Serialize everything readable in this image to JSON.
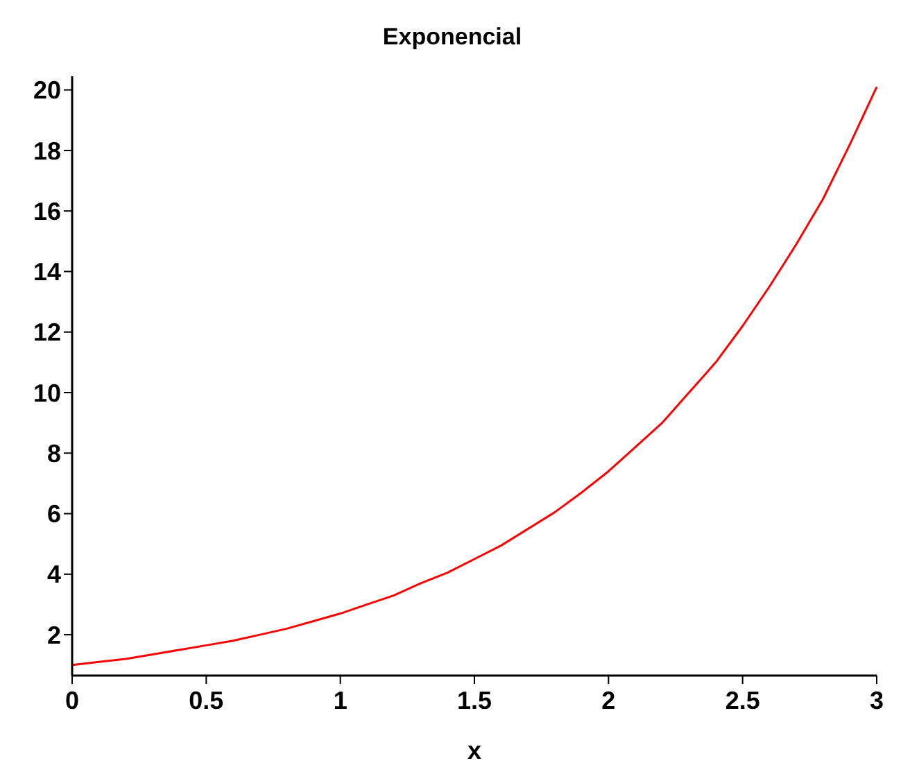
{
  "chart_data": {
    "type": "line",
    "title": "Exponencial",
    "xlabel": "x",
    "x": [
      0,
      0.1,
      0.2,
      0.3,
      0.4,
      0.5,
      0.6,
      0.7,
      0.8,
      0.9,
      1,
      1.1,
      1.2,
      1.3,
      1.4,
      1.5,
      1.6,
      1.7,
      1.8,
      1.9,
      2,
      2.1,
      2.2,
      2.3,
      2.4,
      2.5,
      2.6,
      2.7,
      2.8,
      2.9,
      3
    ],
    "series": [
      {
        "color": "#ff0000",
        "values": [
          1.0,
          1.1,
          1.2,
          1.35,
          1.5,
          1.65,
          1.8,
          2.0,
          2.2,
          2.45,
          2.7,
          3.0,
          3.3,
          3.7,
          4.05,
          4.5,
          4.95,
          5.5,
          6.05,
          6.7,
          7.4,
          8.2,
          9.0,
          10.0,
          11.0,
          12.2,
          13.5,
          14.9,
          16.4,
          18.2,
          20.1
        ]
      }
    ],
    "xlim": [
      0,
      3
    ],
    "xticks": [
      0,
      0.5,
      1,
      1.5,
      2,
      2.5,
      3
    ],
    "ylim": [
      0.65,
      20.45
    ],
    "yticks": [
      2,
      4,
      6,
      8,
      10,
      12,
      14,
      16,
      18,
      20
    ],
    "grid": false,
    "marker": "none",
    "line_style": "solid"
  }
}
